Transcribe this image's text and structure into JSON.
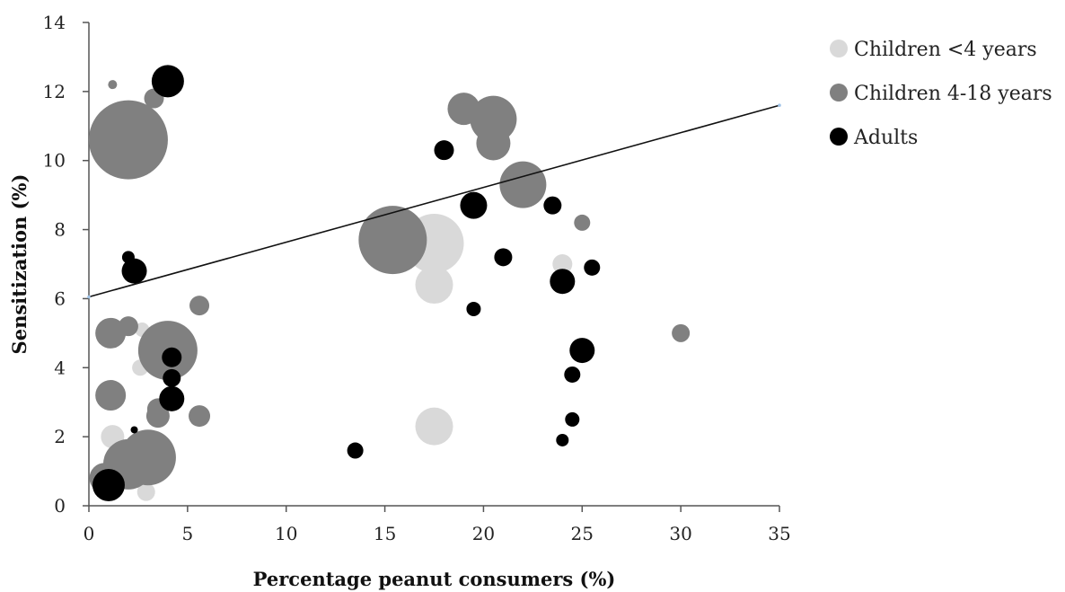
{
  "chart_data": {
    "type": "scatter",
    "title": "",
    "xlabel": "Percentage peanut consumers (%)",
    "ylabel": "Sensitization (%)",
    "xlim": [
      0,
      35
    ],
    "ylim": [
      0,
      14
    ],
    "x_ticks": [
      "0",
      "5",
      "10",
      "15",
      "20",
      "25",
      "30",
      "35"
    ],
    "y_ticks": [
      "0",
      "2",
      "4",
      "6",
      "8",
      "10",
      "12",
      "14"
    ],
    "grid": false,
    "legend_position": "top-right",
    "trendline": {
      "x": [
        0,
        35
      ],
      "y": [
        6.05,
        11.6
      ],
      "color": "#111111"
    },
    "series": [
      {
        "name": "Children <4 years",
        "color": "#d9d9d9",
        "points": [
          {
            "x": 17.5,
            "y": 7.6,
            "size": 33
          },
          {
            "x": 17.5,
            "y": 6.4,
            "size": 21
          },
          {
            "x": 17.5,
            "y": 2.3,
            "size": 21
          },
          {
            "x": 24.0,
            "y": 7.0,
            "size": 11
          },
          {
            "x": 1.2,
            "y": 2.0,
            "size": 13
          },
          {
            "x": 2.7,
            "y": 5.1,
            "size": 8
          },
          {
            "x": 2.6,
            "y": 4.0,
            "size": 9
          },
          {
            "x": 2.9,
            "y": 0.4,
            "size": 10
          },
          {
            "x": 1.8,
            "y": 1.0,
            "size": 12
          }
        ]
      },
      {
        "name": "Children 4-18 years",
        "color": "#808080",
        "points": [
          {
            "x": 2.0,
            "y": 10.6,
            "size": 44
          },
          {
            "x": 1.2,
            "y": 12.2,
            "size": 5
          },
          {
            "x": 3.3,
            "y": 11.8,
            "size": 11
          },
          {
            "x": 15.4,
            "y": 7.7,
            "size": 38
          },
          {
            "x": 19.0,
            "y": 11.5,
            "size": 18
          },
          {
            "x": 20.5,
            "y": 11.2,
            "size": 26
          },
          {
            "x": 20.5,
            "y": 10.5,
            "size": 19
          },
          {
            "x": 22.0,
            "y": 9.3,
            "size": 26
          },
          {
            "x": 25.0,
            "y": 8.2,
            "size": 9
          },
          {
            "x": 30.0,
            "y": 5.0,
            "size": 10
          },
          {
            "x": 5.6,
            "y": 5.8,
            "size": 11
          },
          {
            "x": 5.6,
            "y": 2.6,
            "size": 12
          },
          {
            "x": 2.0,
            "y": 5.2,
            "size": 11
          },
          {
            "x": 1.1,
            "y": 5.0,
            "size": 17
          },
          {
            "x": 4.0,
            "y": 4.5,
            "size": 33
          },
          {
            "x": 1.1,
            "y": 3.2,
            "size": 17
          },
          {
            "x": 3.5,
            "y": 2.8,
            "size": 12
          },
          {
            "x": 3.5,
            "y": 2.6,
            "size": 13
          },
          {
            "x": 3.0,
            "y": 1.4,
            "size": 31
          },
          {
            "x": 2.0,
            "y": 1.2,
            "size": 28
          },
          {
            "x": 0.8,
            "y": 0.8,
            "size": 17
          }
        ]
      },
      {
        "name": "Adults",
        "color": "#000000",
        "points": [
          {
            "x": 4.0,
            "y": 12.3,
            "size": 18
          },
          {
            "x": 18.0,
            "y": 10.3,
            "size": 11
          },
          {
            "x": 19.5,
            "y": 8.7,
            "size": 15
          },
          {
            "x": 23.5,
            "y": 8.7,
            "size": 10
          },
          {
            "x": 21.0,
            "y": 7.2,
            "size": 10
          },
          {
            "x": 25.5,
            "y": 6.9,
            "size": 9
          },
          {
            "x": 24.0,
            "y": 6.5,
            "size": 14
          },
          {
            "x": 19.5,
            "y": 5.7,
            "size": 8
          },
          {
            "x": 25.0,
            "y": 4.5,
            "size": 14
          },
          {
            "x": 24.5,
            "y": 3.8,
            "size": 9
          },
          {
            "x": 24.5,
            "y": 2.5,
            "size": 8
          },
          {
            "x": 24.0,
            "y": 1.9,
            "size": 7
          },
          {
            "x": 13.5,
            "y": 1.6,
            "size": 9
          },
          {
            "x": 2.0,
            "y": 7.2,
            "size": 7
          },
          {
            "x": 2.3,
            "y": 6.8,
            "size": 14
          },
          {
            "x": 4.2,
            "y": 4.3,
            "size": 11
          },
          {
            "x": 4.2,
            "y": 3.7,
            "size": 10
          },
          {
            "x": 4.2,
            "y": 3.1,
            "size": 14
          },
          {
            "x": 2.3,
            "y": 2.2,
            "size": 4
          },
          {
            "x": 1.0,
            "y": 0.6,
            "size": 18
          }
        ]
      }
    ]
  }
}
